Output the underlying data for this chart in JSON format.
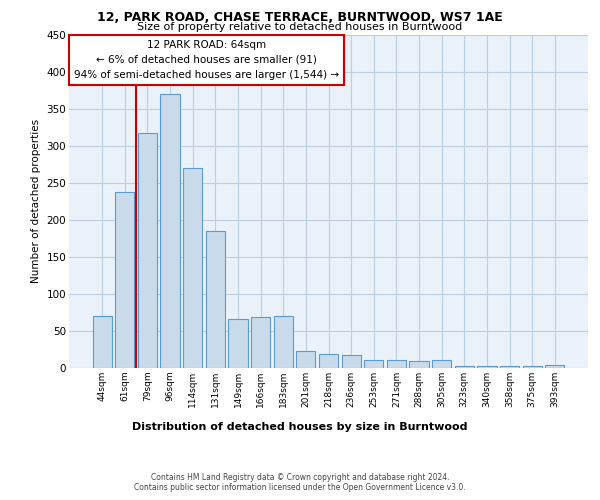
{
  "title_line1": "12, PARK ROAD, CHASE TERRACE, BURNTWOOD, WS7 1AE",
  "title_line2": "Size of property relative to detached houses in Burntwood",
  "xlabel": "Distribution of detached houses by size in Burntwood",
  "ylabel": "Number of detached properties",
  "categories": [
    "44sqm",
    "61sqm",
    "79sqm",
    "96sqm",
    "114sqm",
    "131sqm",
    "149sqm",
    "166sqm",
    "183sqm",
    "201sqm",
    "218sqm",
    "236sqm",
    "253sqm",
    "271sqm",
    "288sqm",
    "305sqm",
    "323sqm",
    "340sqm",
    "358sqm",
    "375sqm",
    "393sqm"
  ],
  "values": [
    70,
    237,
    317,
    370,
    270,
    185,
    65,
    68,
    70,
    22,
    18,
    17,
    10,
    10,
    9,
    10,
    2,
    2,
    2,
    2,
    3
  ],
  "bar_color": "#c9daea",
  "bar_edge_color": "#5b9bd5",
  "grid_color": "#b8cfe4",
  "background_color": "#ffffff",
  "plot_bg_color": "#eaf1f8",
  "vline_color": "#cc0000",
  "vline_x": 1.5,
  "annotation_text": "12 PARK ROAD: 64sqm\n← 6% of detached houses are smaller (91)\n94% of semi-detached houses are larger (1,544) →",
  "annotation_box_color": "#ffffff",
  "annotation_box_edge": "#cc0000",
  "ylim": [
    0,
    450
  ],
  "yticks": [
    0,
    50,
    100,
    150,
    200,
    250,
    300,
    350,
    400,
    450
  ],
  "footer_line1": "Contains HM Land Registry data © Crown copyright and database right 2024.",
  "footer_line2": "Contains public sector information licensed under the Open Government Licence v3.0."
}
